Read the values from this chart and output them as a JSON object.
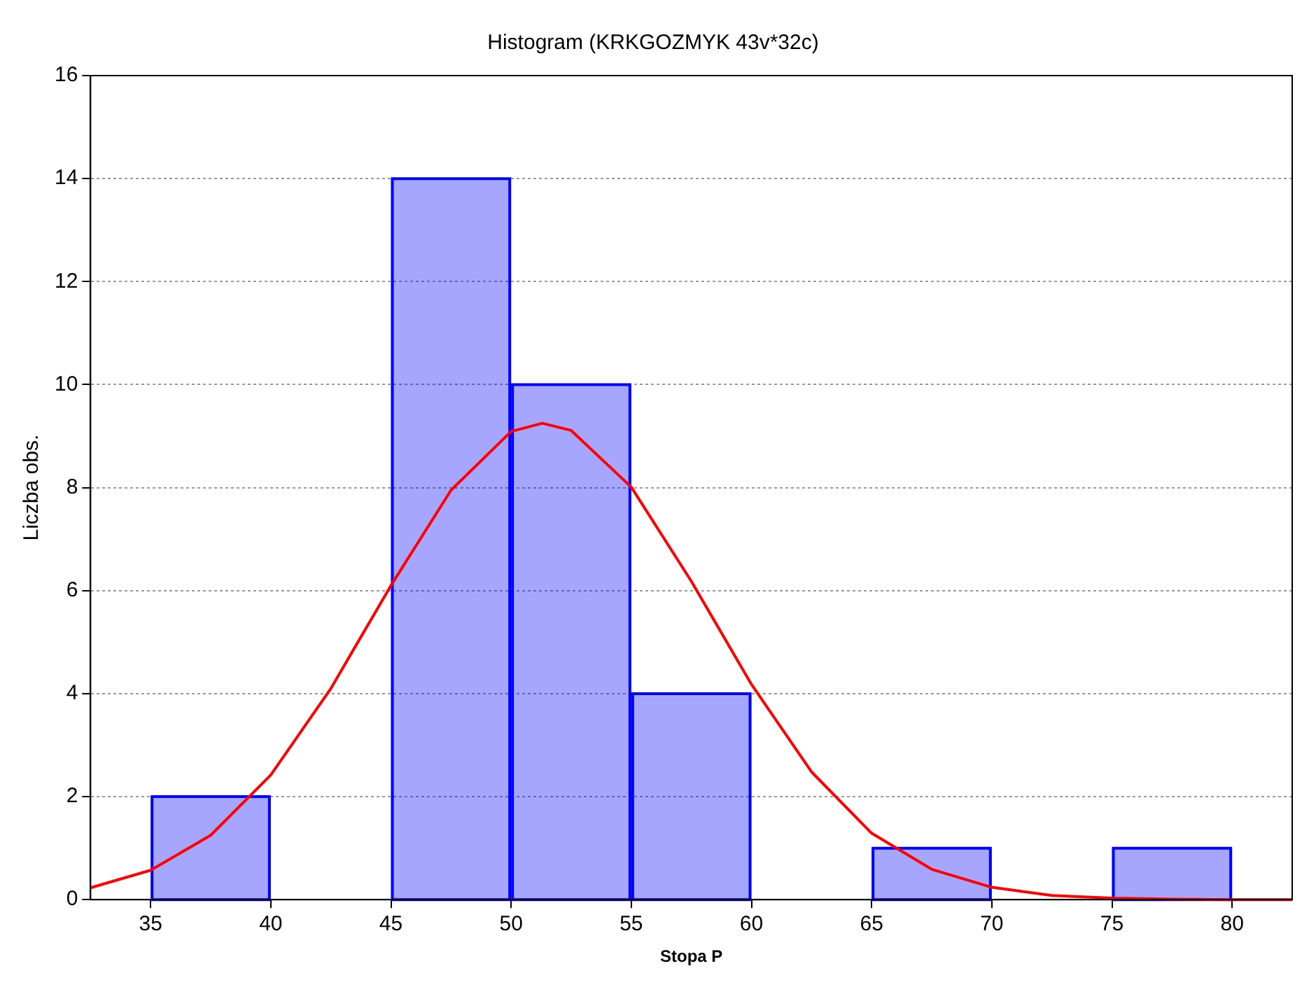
{
  "chart_data": {
    "type": "histogram",
    "title": "Histogram (KRKGOZMYK 43v*32c)",
    "xlabel": "Stopa P",
    "ylabel": "Liczba obs.",
    "bins": [
      35,
      40,
      45,
      50,
      55,
      60,
      65,
      70,
      75,
      80
    ],
    "values": [
      2,
      0,
      14,
      10,
      4,
      0,
      1,
      0,
      1
    ],
    "color": "#0000ff",
    "series": [
      {
        "type": "line",
        "color": "#ff0000",
        "x": [
          32.5,
          35,
          37.5,
          40,
          42.5,
          45,
          47.5,
          50,
          51.3,
          52.5,
          55,
          57.5,
          60,
          62.5,
          65,
          67.5,
          70,
          72.5,
          75,
          77.5,
          80,
          82.5
        ],
        "values": [
          0.23,
          0.57,
          1.25,
          2.42,
          4.1,
          6.1,
          7.95,
          9.09,
          9.25,
          9.11,
          8.01,
          6.18,
          4.18,
          2.48,
          1.29,
          0.59,
          0.24,
          0.08,
          0.03,
          0.01,
          0,
          0
        ]
      }
    ],
    "xlim": [
      32.5,
      82.5
    ],
    "xticks": [
      35,
      40,
      45,
      50,
      55,
      60,
      65,
      70,
      75,
      80
    ],
    "ylim": [
      0,
      16
    ],
    "yticks": [
      0,
      2,
      4,
      6,
      8,
      10,
      12,
      14,
      16
    ],
    "grid": "y",
    "legend": false,
    "marker": "none",
    "line_style": "solid"
  }
}
